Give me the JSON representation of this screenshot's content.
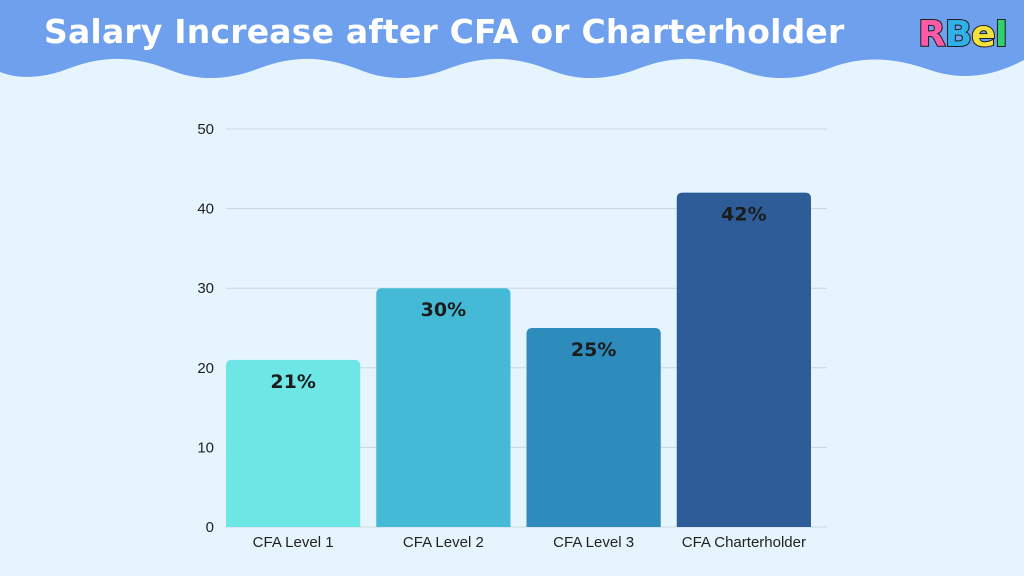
{
  "header": {
    "title": "Salary Increase after CFA or Charterholder",
    "background_color": "#6ea0ee"
  },
  "logo": {
    "letters": [
      "R",
      "B",
      "e",
      "I"
    ],
    "colors": [
      "#ff5aa8",
      "#2fb1e8",
      "#f6e23c",
      "#2fd16c"
    ]
  },
  "chart_data": {
    "type": "bar",
    "categories": [
      "CFA Level 1",
      "CFA Level 2",
      "CFA Level 3",
      "CFA Charterholder"
    ],
    "values": [
      21,
      30,
      25,
      42
    ],
    "data_labels": [
      "21%",
      "30%",
      "25%",
      "42%"
    ],
    "colors": [
      "#6ee6e6",
      "#45bad7",
      "#2e8cbc",
      "#2d5c96"
    ],
    "yticks": [
      0,
      10,
      20,
      30,
      40,
      50
    ],
    "ylim": [
      0,
      50
    ],
    "grid": true,
    "legend": "none"
  }
}
